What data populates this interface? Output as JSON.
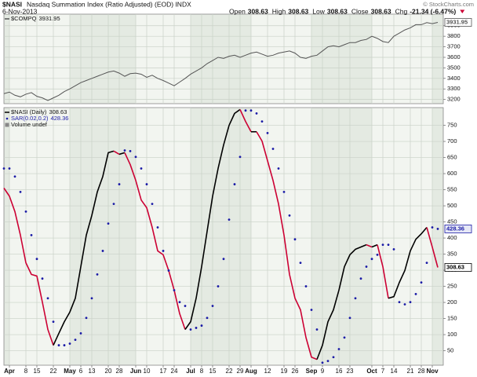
{
  "header": {
    "symbol": "$NASI",
    "description": "Nasdaq Summation Index (Ratio Adjusted) (EOD) INDX",
    "date": "6-Nov-2013",
    "quote": [
      {
        "label": "Open",
        "value": 308.63
      },
      {
        "label": "High",
        "value": 308.63
      },
      {
        "label": "Low",
        "value": 308.63
      },
      {
        "label": "Close",
        "value": 308.63
      },
      {
        "label": "Chg",
        "value": "-21.34 (-6.47%)"
      }
    ],
    "watermark": "© StockCharts.com"
  },
  "chart_data": [
    {
      "type": "line",
      "series": [
        {
          "name": "$COMPQ",
          "color": "#555555",
          "values": [
            3255,
            3270,
            3240,
            3225,
            3250,
            3265,
            3230,
            3215,
            3190,
            3215,
            3240,
            3275,
            3300,
            3330,
            3360,
            3380,
            3400,
            3420,
            3440,
            3460,
            3470,
            3450,
            3420,
            3445,
            3450,
            3440,
            3410,
            3430,
            3400,
            3380,
            3355,
            3330,
            3365,
            3400,
            3440,
            3470,
            3500,
            3540,
            3570,
            3600,
            3590,
            3610,
            3620,
            3600,
            3620,
            3640,
            3650,
            3630,
            3610,
            3620,
            3640,
            3650,
            3660,
            3640,
            3600,
            3590,
            3610,
            3620,
            3660,
            3700,
            3710,
            3700,
            3720,
            3740,
            3740,
            3760,
            3770,
            3800,
            3780,
            3750,
            3740,
            3800,
            3830,
            3860,
            3880,
            3910,
            3910,
            3930,
            3920,
            3931.95
          ]
        }
      ],
      "ylim": [
        3160,
        4010
      ],
      "yticks": [
        3200,
        3300,
        3400,
        3500,
        3600,
        3700,
        3800,
        3900
      ],
      "grid": true
    },
    {
      "type": "line",
      "categories": [
        null,
        "Apr",
        null,
        null,
        "8",
        null,
        "15",
        null,
        null,
        "22",
        null,
        null,
        "May",
        null,
        "6",
        null,
        "13",
        null,
        null,
        "20",
        null,
        "28",
        null,
        null,
        "Jun",
        null,
        "10",
        null,
        null,
        "17",
        null,
        "24",
        null,
        null,
        "Jul",
        null,
        "8",
        null,
        "15",
        null,
        null,
        "22",
        null,
        "29",
        null,
        "Aug",
        null,
        null,
        "12",
        null,
        null,
        "19",
        null,
        "26",
        null,
        null,
        "Sep",
        null,
        "9",
        null,
        null,
        "16",
        null,
        "23",
        null,
        null,
        null,
        "Oct",
        null,
        "7",
        null,
        "14",
        null,
        null,
        "21",
        null,
        "28",
        null,
        "Nov",
        null
      ],
      "series": [
        {
          "name": "$NASI (Daily)",
          "color": "#000000",
          "down_color": "#cc0033",
          "values": [
            555,
            530,
            482,
            409,
            323,
            287,
            282,
            201,
            116,
            67,
            104,
            140,
            170,
            213,
            311,
            409,
            470,
            543,
            591,
            665,
            670,
            660,
            665,
            628,
            579,
            518,
            494,
            433,
            360,
            348,
            299,
            238,
            165,
            116,
            140,
            213,
            311,
            421,
            530,
            616,
            689,
            750,
            787,
            799,
            762,
            730,
            730,
            701,
            640,
            579,
            506,
            409,
            287,
            213,
            177,
            91,
            30,
            23,
            67,
            140,
            177,
            238,
            311,
            348,
            365,
            372,
            379,
            372,
            379,
            311,
            213,
            218,
            262,
            299,
            360,
            396,
            413,
            433,
            372,
            308.63
          ]
        },
        {
          "name": "SAR(0.02,0.2)",
          "color": "#1a1aa6",
          "marker": "dot",
          "values": [
            616,
            616,
            591,
            543,
            482,
            409,
            335,
            274,
            213,
            140,
            67,
            67,
            72,
            84,
            104,
            152,
            213,
            287,
            360,
            445,
            506,
            567,
            672,
            670,
            652,
            616,
            567,
            506,
            433,
            360,
            299,
            238,
            201,
            189,
            116,
            121,
            128,
            152,
            189,
            250,
            335,
            457,
            567,
            652,
            796,
            796,
            787,
            762,
            726,
            677,
            616,
            543,
            470,
            396,
            323,
            250,
            177,
            116,
            13,
            18,
            30,
            55,
            91,
            152,
            213,
            274,
            311,
            335,
            348,
            379,
            379,
            365,
            201,
            194,
            201,
            226,
            262,
            323,
            433,
            428.36
          ]
        }
      ],
      "notes": [
        "Volume undef"
      ],
      "ylim": [
        5,
        805
      ],
      "yticks": [
        50,
        100,
        150,
        200,
        250,
        300,
        350,
        400,
        450,
        500,
        550,
        600,
        650,
        700,
        750
      ],
      "grid": true
    }
  ]
}
